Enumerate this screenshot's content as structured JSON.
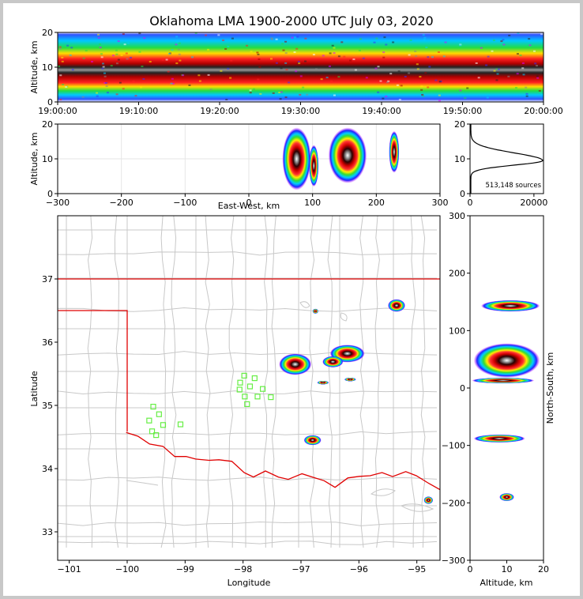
{
  "chart_data": [
    {
      "panel": "time-altitude",
      "type": "heatmap",
      "title": "Oklahoma LMA 1900-2000 UTC July 03, 2020",
      "ylabel": "Altitude, km",
      "ylim": [
        0,
        20
      ],
      "yticks": [
        0,
        10,
        20
      ],
      "xlim_minutes": [
        0,
        60
      ],
      "xtick_labels": [
        "19:00:00",
        "19:10:00",
        "19:20:00",
        "19:30:00",
        "19:40:00",
        "19:50:00",
        "20:00:00"
      ],
      "core_altitude_km": 10
    },
    {
      "panel": "east-west-altitude",
      "type": "heatmap",
      "xlabel": "East-West, km",
      "ylabel": "Altitude, km",
      "xlim": [
        -300,
        300
      ],
      "ylim": [
        0,
        20
      ],
      "xticks": [
        -300,
        -200,
        -100,
        0,
        100,
        200,
        300
      ],
      "yticks": [
        0,
        10,
        20
      ],
      "cells": [
        {
          "x": 75,
          "y": 10,
          "w": 45,
          "h": 18
        },
        {
          "x": 102,
          "y": 8,
          "w": 15,
          "h": 12
        },
        {
          "x": 155,
          "y": 11,
          "w": 60,
          "h": 16
        },
        {
          "x": 228,
          "y": 12,
          "w": 16,
          "h": 12
        }
      ]
    },
    {
      "panel": "altitude-histogram",
      "type": "line",
      "xlim": [
        0,
        23000
      ],
      "ylim": [
        0,
        20
      ],
      "xticks": [
        0,
        20000
      ],
      "yticks": [
        0,
        10,
        20
      ],
      "peak_altitude_km": 9.5,
      "peak_count": 22500,
      "annotation": "513,148 sources"
    },
    {
      "panel": "plan-view-map",
      "type": "scatter",
      "xlabel": "Longitude",
      "ylabel": "Latitude",
      "xlim": [
        -101.2,
        -94.6
      ],
      "ylim": [
        32.55,
        38
      ],
      "xticks": [
        -101,
        -100,
        -99,
        -98,
        -97,
        -96,
        -95
      ],
      "yticks": [
        33,
        34,
        35,
        36,
        37
      ],
      "stations": [
        {
          "lon": -99.55,
          "lat": 34.98
        },
        {
          "lon": -99.45,
          "lat": 34.86
        },
        {
          "lon": -99.62,
          "lat": 34.76
        },
        {
          "lon": -99.38,
          "lat": 34.69
        },
        {
          "lon": -99.57,
          "lat": 34.59
        },
        {
          "lon": -99.5,
          "lat": 34.53
        },
        {
          "lon": -99.08,
          "lat": 34.7
        },
        {
          "lon": -97.98,
          "lat": 35.47
        },
        {
          "lon": -98.05,
          "lat": 35.36
        },
        {
          "lon": -97.88,
          "lat": 35.3
        },
        {
          "lon": -98.06,
          "lat": 35.25
        },
        {
          "lon": -97.66,
          "lat": 35.26
        },
        {
          "lon": -97.97,
          "lat": 35.14
        },
        {
          "lon": -97.75,
          "lat": 35.14
        },
        {
          "lon": -97.52,
          "lat": 35.13
        },
        {
          "lon": -97.93,
          "lat": 35.02
        },
        {
          "lon": -97.8,
          "lat": 35.43
        }
      ],
      "storms": [
        {
          "lon": -97.1,
          "lat": 35.65,
          "rx": 0.28,
          "ry": 0.17
        },
        {
          "lon": -96.2,
          "lat": 35.82,
          "rx": 0.3,
          "ry": 0.14
        },
        {
          "lon": -96.45,
          "lat": 35.69,
          "rx": 0.18,
          "ry": 0.09
        },
        {
          "lon": -95.35,
          "lat": 36.58,
          "rx": 0.15,
          "ry": 0.1
        },
        {
          "lon": -96.8,
          "lat": 34.45,
          "rx": 0.15,
          "ry": 0.08
        },
        {
          "lon": -96.15,
          "lat": 35.41,
          "rx": 0.1,
          "ry": 0.03
        },
        {
          "lon": -96.62,
          "lat": 35.36,
          "rx": 0.1,
          "ry": 0.03
        },
        {
          "lon": -96.75,
          "lat": 36.49,
          "rx": 0.05,
          "ry": 0.04
        },
        {
          "lon": -94.8,
          "lat": 33.5,
          "rx": 0.08,
          "ry": 0.06
        }
      ]
    },
    {
      "panel": "altitude-north-south",
      "type": "heatmap",
      "xlabel": "Altitude, km",
      "ylabel": "North-South, km",
      "xlim": [
        0,
        20
      ],
      "ylim": [
        -300,
        300
      ],
      "xticks": [
        0,
        10,
        20
      ],
      "yticks": [
        -300,
        -200,
        -100,
        0,
        100,
        200,
        300
      ],
      "cells": [
        {
          "y": 143,
          "z": 11,
          "h": 20,
          "w": 16
        },
        {
          "y": 48,
          "z": 10,
          "h": 60,
          "w": 18
        },
        {
          "y": 13,
          "z": 9,
          "h": 10,
          "w": 17
        },
        {
          "y": -88,
          "z": 8,
          "h": 14,
          "w": 14
        },
        {
          "y": -190,
          "z": 10,
          "h": 14,
          "w": 4
        }
      ]
    }
  ]
}
